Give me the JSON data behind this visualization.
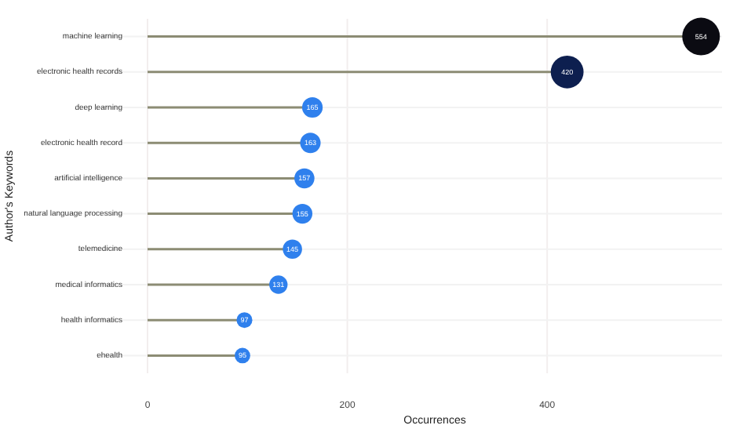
{
  "chart_data": {
    "type": "lollipop",
    "orientation": "horizontal",
    "xlabel": "Occurrences",
    "ylabel": "Author's Keywords",
    "categories": [
      "machine learning",
      "electronic health records",
      "deep learning",
      "electronic health record",
      "artificial intelligence",
      "natural language processing",
      "telemedicine",
      "medical informatics",
      "health informatics",
      "ehealth"
    ],
    "values": [
      554,
      420,
      165,
      163,
      157,
      155,
      145,
      131,
      97,
      95
    ],
    "colors": [
      "#0b0b12",
      "#0d1f4f",
      "#2f80ed",
      "#2f80ed",
      "#2f80ed",
      "#2f80ed",
      "#2f80ed",
      "#2f80ed",
      "#2f80ed",
      "#2f80ed"
    ],
    "sizes": [
      1,
      0.758,
      0.298,
      0.294,
      0.283,
      0.28,
      0.262,
      0.236,
      0.175,
      0.171
    ],
    "xlim": [
      0,
      575
    ],
    "xticks": [
      0,
      200,
      400
    ],
    "grid": true,
    "data_labels": true
  }
}
